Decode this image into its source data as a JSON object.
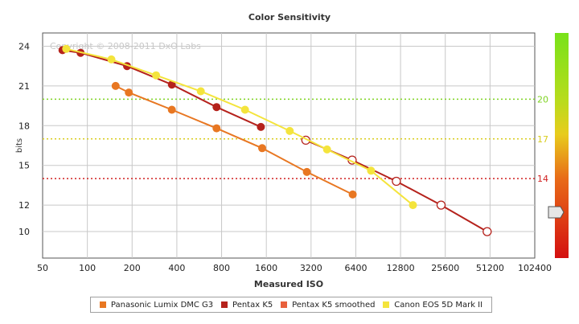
{
  "chart_data": {
    "type": "line",
    "title": "Color Sensitivity",
    "xlabel": "Measured ISO",
    "ylabel": "bits",
    "x_scale": "log2",
    "x_ticks": [
      50,
      100,
      200,
      400,
      800,
      1600,
      3200,
      6400,
      12800,
      25600,
      51200,
      102400
    ],
    "xlim": [
      50,
      102400
    ],
    "y_ticks": [
      10,
      12,
      15,
      18,
      21,
      24
    ],
    "ylim": [
      8,
      25
    ],
    "grid": true,
    "copyright": "Copyright © 2008-2011 DxO Labs",
    "reference_lines": [
      {
        "label": "20",
        "value": 20,
        "color": "#7ed321"
      },
      {
        "label": "17",
        "value": 17,
        "color": "#d8cc1c"
      },
      {
        "label": "14",
        "value": 14,
        "color": "#d02020"
      }
    ],
    "series": [
      {
        "name": "Panasonic Lumix DMC G3",
        "color": "#e87722",
        "hollow_points": false,
        "points": [
          [
            155,
            21.0
          ],
          [
            190,
            20.5
          ],
          [
            370,
            19.2
          ],
          [
            740,
            17.8
          ],
          [
            1500,
            16.3
          ],
          [
            3000,
            14.5
          ],
          [
            6100,
            12.8
          ]
        ]
      },
      {
        "name": "Pentax K5",
        "color": "#b5221c",
        "hollow_points": false,
        "points": [
          [
            68,
            23.7
          ],
          [
            90,
            23.5
          ],
          [
            185,
            22.5
          ],
          [
            370,
            21.1
          ],
          [
            740,
            19.4
          ],
          [
            1470,
            17.9
          ]
        ]
      },
      {
        "name": "Pentax K5 smoothed",
        "color": "#b5221c",
        "hollow_points": true,
        "points": [
          [
            2950,
            16.9
          ],
          [
            6050,
            15.4
          ],
          [
            12000,
            13.8
          ],
          [
            24000,
            12.0
          ],
          [
            49000,
            10.0
          ]
        ]
      },
      {
        "name": "Canon EOS 5D Mark II",
        "color": "#f4e43c",
        "hollow_points": false,
        "points": [
          [
            72,
            23.8
          ],
          [
            145,
            23.0
          ],
          [
            290,
            21.8
          ],
          [
            580,
            20.6
          ],
          [
            1150,
            19.2
          ],
          [
            2300,
            17.6
          ],
          [
            4100,
            16.2
          ],
          [
            8100,
            14.6
          ],
          [
            15500,
            12.0
          ]
        ]
      }
    ],
    "legend": [
      {
        "label": "Panasonic Lumix DMC G3",
        "color": "#e87722"
      },
      {
        "label": "Pentax K5",
        "color": "#b5221c"
      },
      {
        "label": "Pentax K5 smoothed",
        "color": "#e8603c"
      },
      {
        "label": "Canon EOS 5D Mark II",
        "color": "#f4e43c"
      }
    ],
    "gauge": {
      "colors_top_to_bottom": [
        "#7ddc1a",
        "#c8d81c",
        "#e8c41c",
        "#e05818",
        "#d41010"
      ]
    }
  }
}
